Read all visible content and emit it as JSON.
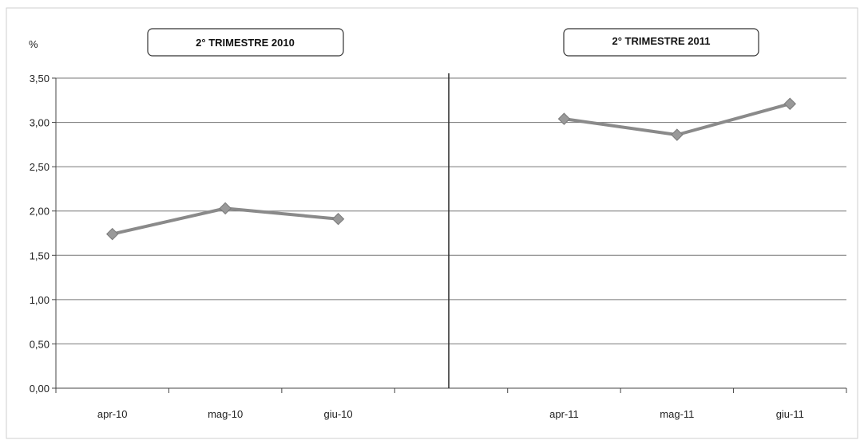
{
  "chart_data": {
    "type": "line",
    "ylabel": "%",
    "ylim": [
      0,
      3.5
    ],
    "yticks": [
      "0,00",
      "0,50",
      "1,00",
      "1,50",
      "2,00",
      "2,50",
      "3,00",
      "3,50"
    ],
    "ytick_values": [
      0,
      0.5,
      1,
      1.5,
      2,
      2.5,
      3,
      3.5
    ],
    "grid": true,
    "panels": [
      {
        "title": "2° TRIMESTRE 2010",
        "categories": [
          "apr-10",
          "mag-10",
          "giu-10"
        ],
        "values": [
          1.74,
          2.03,
          1.91
        ]
      },
      {
        "title": "2° TRIMESTRE 2011",
        "categories": [
          "apr-11",
          "mag-11",
          "giu-11"
        ],
        "values": [
          3.04,
          2.86,
          3.21
        ]
      }
    ],
    "colors": {
      "line": "#8a8a8a",
      "marker": "#999999",
      "grid": "#777777",
      "divider": "#333333",
      "axis": "#444444"
    }
  }
}
